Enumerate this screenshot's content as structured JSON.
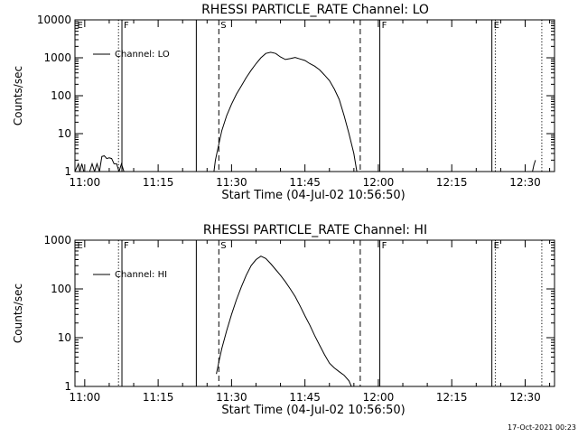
{
  "footer": {
    "timestamp": "17-Oct-2021 00:23"
  },
  "chart_data": [
    {
      "type": "line",
      "title": "RHESSI PARTICLE_RATE Channel: LO",
      "xlabel": "Start Time (04-Jul-02 10:56:50)",
      "ylabel": "Counts/sec",
      "yscale": "log",
      "xlim_minutes": [
        -2,
        96
      ],
      "ylim": [
        1,
        10000
      ],
      "x_tick_minutes": [
        0,
        15,
        30,
        45,
        60,
        75,
        90
      ],
      "x_tick_labels": [
        "11:00",
        "11:15",
        "11:30",
        "11:45",
        "12:00",
        "12:15",
        "12:30"
      ],
      "y_tick_values": [
        1,
        10,
        100,
        1000,
        10000
      ],
      "y_tick_labels": [
        "1",
        "10",
        "100",
        "1000",
        "10000"
      ],
      "legend": {
        "label": "Channel: LO",
        "position": "top-left"
      },
      "markers": [
        {
          "label": "E",
          "minute": -1.9,
          "style": "dotted",
          "show_label": true,
          "show_line": false
        },
        {
          "label": "",
          "minute": 6.9,
          "style": "dotted",
          "show_label": false,
          "show_line": true
        },
        {
          "label": "F",
          "minute": 7.6,
          "style": "solid",
          "show_label": true,
          "show_line": true
        },
        {
          "label": "",
          "minute": 22.8,
          "style": "solid",
          "show_label": false,
          "show_line": true
        },
        {
          "label": "S",
          "minute": 27.4,
          "style": "dashed",
          "show_label": true,
          "show_line": true
        },
        {
          "label": "",
          "minute": 56.3,
          "style": "dashed",
          "show_label": false,
          "show_line": true
        },
        {
          "label": "F",
          "minute": 60.3,
          "style": "solid",
          "show_label": true,
          "show_line": true
        },
        {
          "label": "E",
          "minute": 83.2,
          "style": "solid",
          "show_label": true,
          "show_line": true
        },
        {
          "label": "",
          "minute": 83.9,
          "style": "dotted",
          "show_label": false,
          "show_line": true
        },
        {
          "label": "",
          "minute": 93.4,
          "style": "dotted",
          "show_label": false,
          "show_line": true
        }
      ],
      "series": [
        {
          "name": "Channel: LO",
          "x": [
            -2,
            -1.3,
            -1,
            -0.6,
            -0.2
          ],
          "y": [
            1,
            1.6,
            1,
            1.6,
            1
          ]
        },
        {
          "name": "Channel: LO",
          "x": [
            1,
            1.5,
            2,
            2.5,
            3,
            3.5,
            4,
            4.5,
            5,
            5.5,
            6,
            6.5,
            7,
            7.5,
            8
          ],
          "y": [
            1,
            1.6,
            1,
            1.6,
            1,
            2.5,
            2.6,
            2.2,
            2.3,
            2.2,
            1.6,
            1.6,
            1,
            1.6,
            1
          ]
        },
        {
          "name": "Channel: LO",
          "x": [
            26.4,
            26.7,
            27.2,
            28,
            29,
            30,
            31,
            32,
            33,
            34,
            35,
            36,
            37,
            38,
            39,
            40,
            41,
            42,
            43,
            44,
            45,
            46,
            47,
            48,
            49,
            50,
            51,
            52,
            53,
            54,
            55,
            55.6
          ],
          "y": [
            1,
            2,
            4,
            12,
            30,
            60,
            110,
            180,
            300,
            470,
            700,
            1000,
            1300,
            1400,
            1300,
            1050,
            900,
            950,
            1020,
            930,
            850,
            700,
            600,
            480,
            350,
            250,
            150,
            80,
            30,
            10,
            3,
            1
          ]
        },
        {
          "name": "Channel: LO",
          "x": [
            91.5,
            91.8,
            92.1
          ],
          "y": [
            1,
            1.5,
            2
          ]
        }
      ]
    },
    {
      "type": "line",
      "title": "RHESSI PARTICLE_RATE Channel: HI",
      "xlabel": "Start Time (04-Jul-02 10:56:50)",
      "ylabel": "Counts/sec",
      "yscale": "log",
      "xlim_minutes": [
        -2,
        96
      ],
      "ylim": [
        1,
        1000
      ],
      "x_tick_minutes": [
        0,
        15,
        30,
        45,
        60,
        75,
        90
      ],
      "x_tick_labels": [
        "11:00",
        "11:15",
        "11:30",
        "11:45",
        "12:00",
        "12:15",
        "12:30"
      ],
      "y_tick_values": [
        1,
        10,
        100,
        1000
      ],
      "y_tick_labels": [
        "1",
        "10",
        "100",
        "1000"
      ],
      "legend": {
        "label": "Channel: HI",
        "position": "top-left"
      },
      "markers": [
        {
          "label": "E",
          "minute": -1.9,
          "style": "dotted",
          "show_label": true,
          "show_line": false
        },
        {
          "label": "",
          "minute": 6.9,
          "style": "dotted",
          "show_label": false,
          "show_line": true
        },
        {
          "label": "F",
          "minute": 7.6,
          "style": "solid",
          "show_label": true,
          "show_line": true
        },
        {
          "label": "",
          "minute": 22.8,
          "style": "solid",
          "show_label": false,
          "show_line": true
        },
        {
          "label": "S",
          "minute": 27.4,
          "style": "dashed",
          "show_label": true,
          "show_line": true
        },
        {
          "label": "",
          "minute": 56.3,
          "style": "dashed",
          "show_label": false,
          "show_line": true
        },
        {
          "label": "F",
          "minute": 60.3,
          "style": "solid",
          "show_label": true,
          "show_line": true
        },
        {
          "label": "E",
          "minute": 83.2,
          "style": "solid",
          "show_label": true,
          "show_line": true
        },
        {
          "label": "",
          "minute": 83.9,
          "style": "dotted",
          "show_label": false,
          "show_line": true
        },
        {
          "label": "",
          "minute": 93.4,
          "style": "dotted",
          "show_label": false,
          "show_line": true
        }
      ],
      "series": [
        {
          "name": "Channel: HI",
          "x": [
            26.9,
            27.5,
            28,
            29,
            30,
            31,
            32,
            33,
            34,
            35,
            36,
            37,
            38,
            39,
            40,
            41,
            42,
            43,
            44,
            45,
            46,
            47,
            48,
            49,
            50,
            51,
            52,
            53,
            54,
            54.5
          ],
          "y": [
            1.8,
            3.5,
            6,
            14,
            30,
            60,
            110,
            190,
            300,
            400,
            470,
            420,
            330,
            250,
            190,
            140,
            100,
            70,
            45,
            28,
            18,
            11,
            7,
            4.5,
            3,
            2.4,
            2,
            1.7,
            1.3,
            1
          ]
        }
      ]
    }
  ]
}
